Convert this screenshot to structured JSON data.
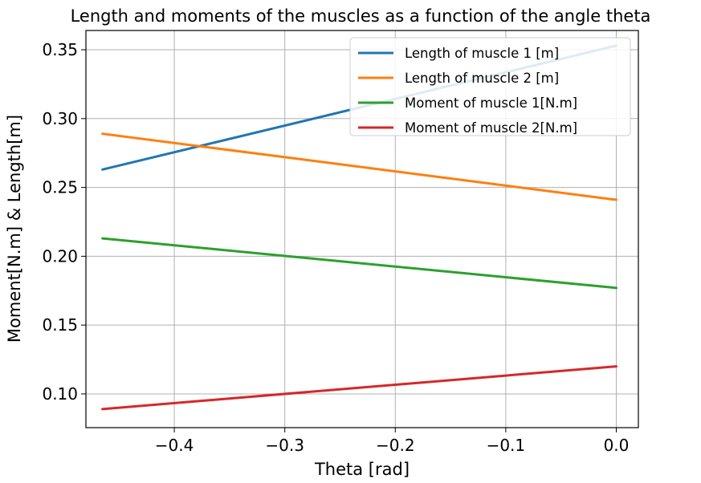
{
  "chart_data": {
    "type": "line",
    "title": "Length and moments of the muscles as a function of the angle theta",
    "xlabel": "Theta [rad]",
    "ylabel": "Moment[N.m] & Length[m]",
    "xlim": [
      -0.48,
      0.02
    ],
    "ylim": [
      0.0755,
      0.364
    ],
    "xticks": [
      -0.4,
      -0.3,
      -0.2,
      -0.1,
      0.0
    ],
    "xtick_labels": [
      "−0.4",
      "−0.3",
      "−0.2",
      "−0.1",
      "0.0"
    ],
    "yticks": [
      0.1,
      0.15,
      0.2,
      0.25,
      0.3,
      0.35
    ],
    "ytick_labels": [
      "0.10",
      "0.15",
      "0.20",
      "0.25",
      "0.30",
      "0.35"
    ],
    "grid": true,
    "legend_position": "upper right",
    "series": [
      {
        "name": "Length of muscle 1 [m]",
        "color": "#1f77b4",
        "x": [
          -0.465,
          0.0
        ],
        "values": [
          0.263,
          0.353
        ]
      },
      {
        "name": "Length of muscle 2 [m]",
        "color": "#ff7f0e",
        "x": [
          -0.465,
          0.0
        ],
        "values": [
          0.289,
          0.241
        ]
      },
      {
        "name": "Moment of muscle 1[N.m]",
        "color": "#2ca02c",
        "x": [
          -0.465,
          0.0
        ],
        "values": [
          0.213,
          0.177
        ]
      },
      {
        "name": "Moment of muscle 2[N.m]",
        "color": "#d62728",
        "x": [
          -0.465,
          0.0
        ],
        "values": [
          0.089,
          0.12
        ]
      }
    ]
  }
}
